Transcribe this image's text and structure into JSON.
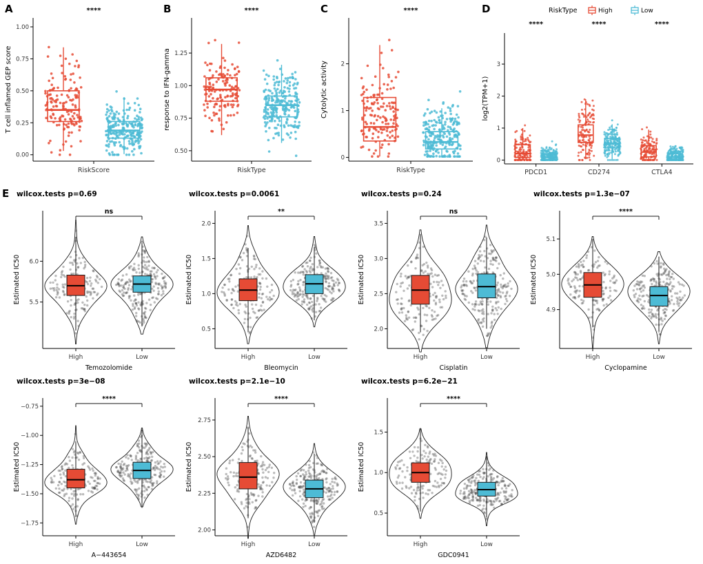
{
  "figure": {
    "panel_labels": {
      "a": "A",
      "b": "B",
      "c": "C",
      "d": "D",
      "e": "E"
    }
  },
  "colors": {
    "high": "#E64B35",
    "low": "#4DBBD5",
    "violin_outline": "#1a1a1a",
    "jitter_gray": "#3c3c3c",
    "axis": "#000000",
    "tick_text": "#333333"
  },
  "legend": {
    "title": "RiskType",
    "items": [
      {
        "label": "High",
        "color": "#E64B35"
      },
      {
        "label": "Low",
        "color": "#4DBBD5"
      }
    ]
  },
  "chart_data": [
    {
      "id": "A",
      "kind": "box",
      "sig": "****",
      "ylabel": "T cell inflamed GEP score",
      "xlabel": "RiskScore",
      "ylim": [
        -0.05,
        1.07
      ],
      "yticks": [
        [
          0,
          "0.00"
        ],
        [
          0.25,
          "0.25"
        ],
        [
          0.5,
          "0.50"
        ],
        [
          0.75,
          "0.75"
        ],
        [
          1,
          "1.00"
        ]
      ],
      "groups": [
        {
          "name": "High",
          "color": "#E64B35",
          "box": [
            0.03,
            0.26,
            0.35,
            0.5,
            0.84
          ],
          "points": {
            "n": 150,
            "mean": 0.38,
            "sd": 0.16,
            "min": 0,
            "max": 1.0
          }
        },
        {
          "name": "Low",
          "color": "#4DBBD5",
          "box": [
            0.005,
            0.13,
            0.19,
            0.26,
            0.45
          ],
          "points": {
            "n": 240,
            "mean": 0.2,
            "sd": 0.09,
            "min": 0,
            "max": 0.55
          }
        }
      ]
    },
    {
      "id": "B",
      "kind": "box",
      "sig": "****",
      "ylabel": "response to IFN-gamma",
      "xlabel": "RiskType",
      "ylim": [
        0.42,
        1.52
      ],
      "yticks": [
        [
          0.5,
          "0.50"
        ],
        [
          0.75,
          "0.75"
        ],
        [
          1,
          "1.00"
        ],
        [
          1.25,
          "1.25"
        ]
      ],
      "groups": [
        {
          "name": "High",
          "color": "#E64B35",
          "box": [
            0.62,
            0.88,
            0.97,
            1.06,
            1.32
          ],
          "points": {
            "n": 150,
            "mean": 0.97,
            "sd": 0.15,
            "min": 0.5,
            "max": 1.45
          }
        },
        {
          "name": "Low",
          "color": "#4DBBD5",
          "box": [
            0.56,
            0.76,
            0.85,
            0.92,
            1.16
          ],
          "points": {
            "n": 240,
            "mean": 0.845,
            "sd": 0.12,
            "min": 0.45,
            "max": 1.25
          }
        }
      ]
    },
    {
      "id": "C",
      "kind": "box",
      "sig": "****",
      "ylabel": "Cytolytic activity",
      "xlabel": "RiskType",
      "ylim": [
        -0.08,
        2.98
      ],
      "yticks": [
        [
          0,
          "0"
        ],
        [
          1,
          "1"
        ],
        [
          2,
          "2"
        ]
      ],
      "groups": [
        {
          "name": "High",
          "color": "#E64B35",
          "box": [
            0.02,
            0.35,
            0.65,
            1.28,
            2.4
          ],
          "points": {
            "n": 150,
            "mean": 0.85,
            "sd": 0.55,
            "min": 0.02,
            "max": 2.85
          }
        },
        {
          "name": "Low",
          "color": "#4DBBD5",
          "box": [
            0.02,
            0.18,
            0.33,
            0.55,
            1.05
          ],
          "points": {
            "n": 240,
            "mean": 0.42,
            "sd": 0.33,
            "min": 0.02,
            "max": 2.6
          }
        }
      ]
    },
    {
      "id": "D",
      "kind": "grouped-box",
      "ylabel": "log2(TPM+1)",
      "legend_title": "RiskType",
      "ylim": [
        -0.12,
        3.97
      ],
      "yticks": [
        [
          0,
          "0"
        ],
        [
          1,
          "1"
        ],
        [
          2,
          "2"
        ],
        [
          3,
          "3"
        ]
      ],
      "categories": [
        {
          "name": "PDCD1",
          "sig": "****",
          "groups": [
            {
              "name": "High",
              "color": "#E64B35",
              "box": [
                0,
                0.08,
                0.2,
                0.48,
                1.0
              ],
              "points": {
                "n": 130,
                "mean": 0.3,
                "sd": 0.3,
                "min": 0,
                "max": 1.35
              }
            },
            {
              "name": "Low",
              "color": "#4DBBD5",
              "box": [
                0,
                0.02,
                0.08,
                0.18,
                0.42
              ],
              "points": {
                "n": 190,
                "mean": 0.1,
                "sd": 0.15,
                "min": 0,
                "max": 1.2
              }
            }
          ]
        },
        {
          "name": "CD274",
          "sig": "****",
          "groups": [
            {
              "name": "High",
              "color": "#E64B35",
              "box": [
                0.05,
                0.55,
                0.78,
                1.1,
                1.9
              ],
              "points": {
                "n": 130,
                "mean": 0.85,
                "sd": 0.55,
                "min": 0,
                "max": 3.8
              }
            },
            {
              "name": "Low",
              "color": "#4DBBD5",
              "box": [
                0.02,
                0.38,
                0.52,
                0.68,
                1.12
              ],
              "points": {
                "n": 190,
                "mean": 0.55,
                "sd": 0.25,
                "min": 0,
                "max": 2.0
              }
            }
          ]
        },
        {
          "name": "CTLA4",
          "sig": "****",
          "groups": [
            {
              "name": "High",
              "color": "#E64B35",
              "box": [
                0,
                0.1,
                0.25,
                0.45,
                0.95
              ],
              "points": {
                "n": 130,
                "mean": 0.28,
                "sd": 0.28,
                "min": 0,
                "max": 2.1
              }
            },
            {
              "name": "Low",
              "color": "#4DBBD5",
              "box": [
                0,
                0.02,
                0.1,
                0.2,
                0.46
              ],
              "points": {
                "n": 190,
                "mean": 0.12,
                "sd": 0.15,
                "min": 0,
                "max": 1.3
              }
            }
          ]
        }
      ]
    },
    {
      "id": "E1",
      "kind": "violin",
      "title": "wilcox.tests p=0.69",
      "sig": "ns",
      "ylabel": "Estimated IC50",
      "xlabel": "Temozolomide",
      "ylim": [
        4.93,
        6.62
      ],
      "yticks": [
        [
          5.5,
          "5.5"
        ],
        [
          6,
          "6.0"
        ]
      ],
      "groups": [
        {
          "name": "High",
          "color": "#E64B35",
          "box": [
            5.15,
            5.58,
            5.7,
            5.83,
            6.3
          ],
          "points": {
            "n": 150,
            "mean": 5.7,
            "sd": 0.22,
            "min": 5.05,
            "max": 6.4
          }
        },
        {
          "name": "Low",
          "color": "#4DBBD5",
          "box": [
            5.2,
            5.62,
            5.72,
            5.82,
            6.25
          ],
          "points": {
            "n": 230,
            "mean": 5.72,
            "sd": 0.2,
            "min": 5.1,
            "max": 6.45
          }
        }
      ]
    },
    {
      "id": "E2",
      "kind": "violin",
      "title": "wilcox.tests p=0.0061",
      "sig": "**",
      "ylabel": "Estimated IC50",
      "xlabel": "Bleomycin",
      "ylim": [
        0.22,
        2.18
      ],
      "yticks": [
        [
          0.5,
          "0.5"
        ],
        [
          1,
          "1.0"
        ],
        [
          1.5,
          "1.5"
        ],
        [
          2,
          "2.0"
        ]
      ],
      "groups": [
        {
          "name": "High",
          "color": "#E64B35",
          "box": [
            0.45,
            0.9,
            1.05,
            1.21,
            1.65
          ],
          "points": {
            "n": 150,
            "mean": 1.05,
            "sd": 0.25,
            "min": 0.35,
            "max": 1.95
          }
        },
        {
          "name": "Low",
          "color": "#4DBBD5",
          "box": [
            0.62,
            1.0,
            1.14,
            1.27,
            1.66
          ],
          "points": {
            "n": 230,
            "mean": 1.13,
            "sd": 0.2,
            "min": 0.55,
            "max": 1.95
          }
        }
      ]
    },
    {
      "id": "E3",
      "kind": "violin",
      "title": "wilcox.tests p=0.24",
      "sig": "ns",
      "ylabel": "Estimated IC50",
      "xlabel": "Cisplatin",
      "ylim": [
        1.72,
        3.68
      ],
      "yticks": [
        [
          2,
          "2.0"
        ],
        [
          2.5,
          "2.5"
        ],
        [
          3,
          "3.0"
        ],
        [
          3.5,
          "3.5"
        ]
      ],
      "groups": [
        {
          "name": "High",
          "color": "#E64B35",
          "box": [
            1.95,
            2.35,
            2.55,
            2.76,
            3.35
          ],
          "points": {
            "n": 150,
            "mean": 2.55,
            "sd": 0.3,
            "min": 1.85,
            "max": 3.5
          }
        },
        {
          "name": "Low",
          "color": "#4DBBD5",
          "box": [
            2.0,
            2.44,
            2.6,
            2.78,
            3.3
          ],
          "points": {
            "n": 230,
            "mean": 2.6,
            "sd": 0.28,
            "min": 1.9,
            "max": 3.55
          }
        }
      ]
    },
    {
      "id": "E4",
      "kind": "violin",
      "title": "wilcox.tests p=1.3e−07",
      "sig": "****",
      "ylabel": "Estimated IC50",
      "xlabel": "Cyclopamine",
      "ylim": [
        4.79,
        5.18
      ],
      "yticks": [
        [
          4.9,
          "4.9"
        ],
        [
          5.0,
          "5.0"
        ],
        [
          5.1,
          "5.1"
        ]
      ],
      "groups": [
        {
          "name": "High",
          "color": "#E64B35",
          "box": [
            4.85,
            4.935,
            4.97,
            5.005,
            5.1
          ],
          "points": {
            "n": 150,
            "mean": 4.97,
            "sd": 0.05,
            "min": 4.82,
            "max": 5.15
          }
        },
        {
          "name": "Low",
          "color": "#4DBBD5",
          "box": [
            4.84,
            4.91,
            4.94,
            4.965,
            5.05
          ],
          "points": {
            "n": 230,
            "mean": 4.94,
            "sd": 0.045,
            "min": 4.83,
            "max": 5.1
          }
        }
      ]
    },
    {
      "id": "E5",
      "kind": "violin",
      "title": "wilcox.tests p=3e−08",
      "sig": "****",
      "ylabel": "Estimated IC50",
      "xlabel": "A−443654",
      "ylim": [
        -1.86,
        -0.68
      ],
      "yticks": [
        [
          -1.75,
          "−1.75"
        ],
        [
          -1.5,
          "−1.50"
        ],
        [
          -1.25,
          "−1.25"
        ],
        [
          -1,
          "−1.00"
        ],
        [
          -0.75,
          "−0.75"
        ]
      ],
      "groups": [
        {
          "name": "High",
          "color": "#E64B35",
          "box": [
            -1.7,
            -1.45,
            -1.38,
            -1.29,
            -1.05
          ],
          "points": {
            "n": 150,
            "mean": -1.37,
            "sd": 0.12,
            "min": -1.78,
            "max": -0.95
          }
        },
        {
          "name": "Low",
          "color": "#4DBBD5",
          "box": [
            -1.62,
            -1.37,
            -1.3,
            -1.23,
            -0.95
          ],
          "points": {
            "n": 230,
            "mean": -1.3,
            "sd": 0.11,
            "min": -1.7,
            "max": -0.75
          }
        }
      ]
    },
    {
      "id": "E6",
      "kind": "violin",
      "title": "wilcox.tests p=2.1e−10",
      "sig": "****",
      "ylabel": "Estimated IC50",
      "xlabel": "AZD6482",
      "ylim": [
        1.96,
        2.9
      ],
      "yticks": [
        [
          2,
          "2.00"
        ],
        [
          2.25,
          "2.25"
        ],
        [
          2.5,
          "2.50"
        ],
        [
          2.75,
          "2.75"
        ]
      ],
      "groups": [
        {
          "name": "High",
          "color": "#E64B35",
          "box": [
            2.08,
            2.28,
            2.36,
            2.46,
            2.7
          ],
          "points": {
            "n": 150,
            "mean": 2.37,
            "sd": 0.13,
            "min": 2.02,
            "max": 2.82
          }
        },
        {
          "name": "Low",
          "color": "#4DBBD5",
          "box": [
            2.05,
            2.22,
            2.28,
            2.34,
            2.52
          ],
          "points": {
            "n": 230,
            "mean": 2.28,
            "sd": 0.1,
            "min": 2.02,
            "max": 2.75
          }
        }
      ]
    },
    {
      "id": "E7",
      "kind": "violin",
      "title": "wilcox.tests p=6.2e−21",
      "sig": "****",
      "ylabel": "Estimated IC50",
      "xlabel": "GDC0941",
      "ylim": [
        0.22,
        1.92
      ],
      "yticks": [
        [
          0.5,
          "0.5"
        ],
        [
          1,
          "1.0"
        ],
        [
          1.5,
          "1.5"
        ]
      ],
      "groups": [
        {
          "name": "High",
          "color": "#E64B35",
          "box": [
            0.52,
            0.88,
            1.0,
            1.12,
            1.55
          ],
          "points": {
            "n": 150,
            "mean": 1.0,
            "sd": 0.2,
            "min": 0.35,
            "max": 1.75
          }
        },
        {
          "name": "Low",
          "color": "#4DBBD5",
          "box": [
            0.45,
            0.71,
            0.79,
            0.88,
            1.2
          ],
          "points": {
            "n": 230,
            "mean": 0.79,
            "sd": 0.13,
            "min": 0.35,
            "max": 1.45
          }
        }
      ]
    }
  ]
}
